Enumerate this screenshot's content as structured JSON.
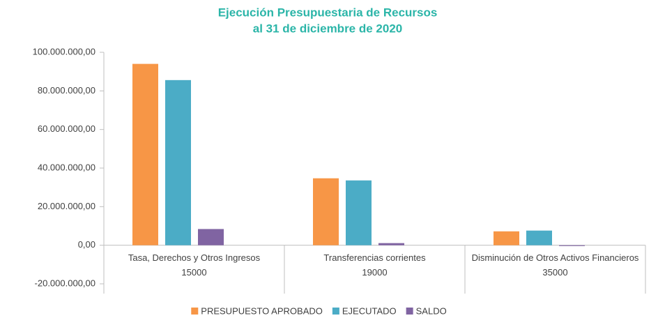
{
  "chart_data": {
    "type": "bar",
    "title": [
      "Ejecución Presupuestaria de Recursos",
      "al 31 de diciembre de 2020"
    ],
    "categories": [
      "Tasa, Derechos y Otros Ingresos",
      "Transferencias corrientes",
      "Disminución de Otros Activos Financieros"
    ],
    "category_codes": [
      "15000",
      "19000",
      "35000"
    ],
    "series": [
      {
        "name": "PRESUPUESTO APROBADO",
        "color": "#f79646",
        "values": [
          94000000,
          34700000,
          7200000
        ]
      },
      {
        "name": "EJECUTADO",
        "color": "#4bacc6",
        "values": [
          85600000,
          33600000,
          7600000
        ]
      },
      {
        "name": "SALDO",
        "color": "#8064a2",
        "values": [
          8400000,
          1100000,
          -400000
        ]
      }
    ],
    "ylim": [
      -20000000,
      100000000
    ],
    "yticks": [
      {
        "value": -20000000,
        "label": "-20.000.000,00"
      },
      {
        "value": 0,
        "label": "0,00"
      },
      {
        "value": 20000000,
        "label": "20.000.000,00"
      },
      {
        "value": 40000000,
        "label": "40.000.000,00"
      },
      {
        "value": 60000000,
        "label": "60.000.000,00"
      },
      {
        "value": 80000000,
        "label": "80.000.000,00"
      },
      {
        "value": 100000000,
        "label": "100.000.000,00"
      }
    ],
    "grid": false,
    "legend": "bottom"
  }
}
